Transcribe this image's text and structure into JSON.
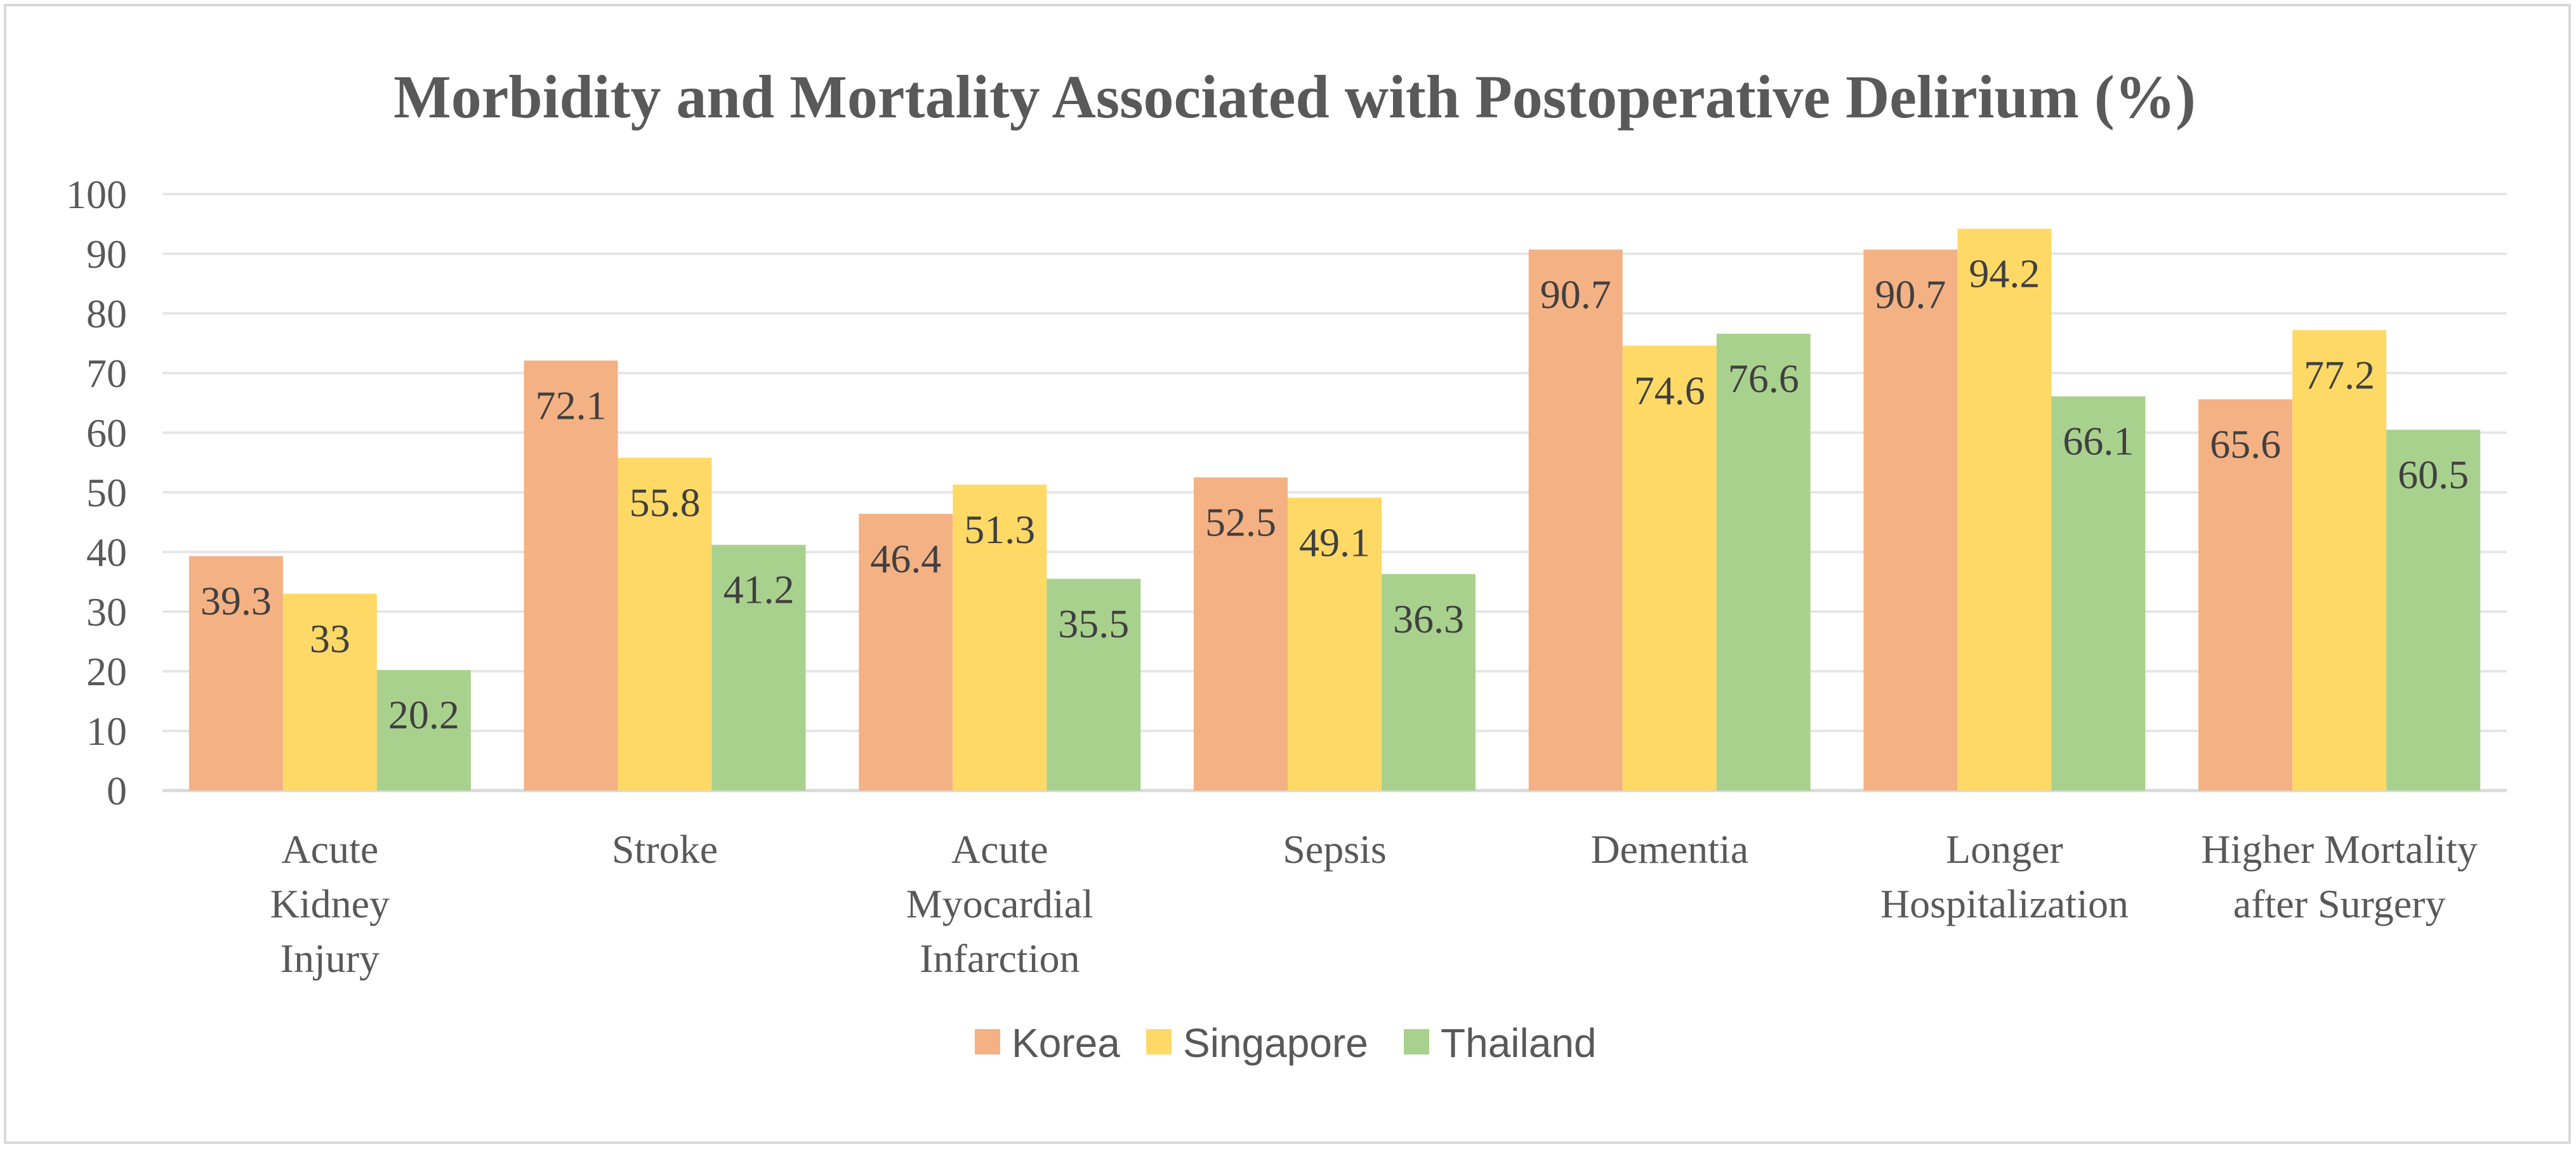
{
  "chart_data": {
    "type": "bar",
    "title": "Morbidity and Mortality Associated with Postoperative Delirium (%)",
    "xlabel": "",
    "ylabel": "",
    "ylim": [
      0,
      100
    ],
    "yticks": [
      0,
      10,
      20,
      30,
      40,
      50,
      60,
      70,
      80,
      90,
      100
    ],
    "grid": true,
    "legend_position": "bottom",
    "categories": [
      [
        "Acute",
        "Kidney",
        "Injury"
      ],
      [
        "Stroke"
      ],
      [
        "Acute",
        "Myocardial",
        "Infarction"
      ],
      [
        "Sepsis"
      ],
      [
        "Dementia"
      ],
      [
        "Longer",
        "Hospitalization"
      ],
      [
        "Higher Mortality",
        "after Surgery"
      ]
    ],
    "series": [
      {
        "name": "Korea",
        "color": "#f4b183",
        "values": [
          39.3,
          72.1,
          46.4,
          52.5,
          90.7,
          90.7,
          65.6
        ]
      },
      {
        "name": "Singapore",
        "color": "#ffd966",
        "values": [
          33,
          55.8,
          51.3,
          49.1,
          74.6,
          94.2,
          77.2
        ]
      },
      {
        "name": "Thailand",
        "color": "#a9d18e",
        "values": [
          20.2,
          41.2,
          35.5,
          36.3,
          76.6,
          66.1,
          60.5
        ]
      }
    ]
  }
}
